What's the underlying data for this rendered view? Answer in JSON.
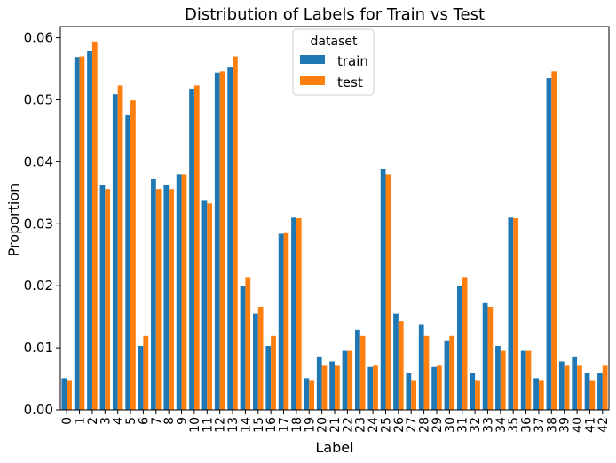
{
  "chart_data": {
    "type": "bar",
    "title": "Distribution of Labels for Train vs Test",
    "xlabel": "Label",
    "ylabel": "Proportion",
    "ylim": [
      0,
      0.0618
    ],
    "yticks": [
      "0.00",
      "0.01",
      "0.02",
      "0.03",
      "0.04",
      "0.05",
      "0.06"
    ],
    "ytick_values": [
      0,
      0.01,
      0.02,
      0.03,
      0.04,
      0.05,
      0.06
    ],
    "grid": false,
    "legend": {
      "title": "dataset",
      "placement": "top-center"
    },
    "categories": [
      "0",
      "1",
      "2",
      "3",
      "4",
      "5",
      "6",
      "7",
      "8",
      "9",
      "10",
      "11",
      "12",
      "13",
      "14",
      "15",
      "16",
      "17",
      "18",
      "19",
      "20",
      "21",
      "22",
      "23",
      "24",
      "25",
      "26",
      "27",
      "28",
      "29",
      "30",
      "31",
      "32",
      "33",
      "34",
      "35",
      "36",
      "37",
      "38",
      "39",
      "40",
      "41",
      "42"
    ],
    "series": [
      {
        "name": "train",
        "color": "#1f77b4",
        "values": [
          0.0051,
          0.0569,
          0.0578,
          0.0362,
          0.0509,
          0.0475,
          0.0103,
          0.0372,
          0.0362,
          0.038,
          0.0518,
          0.0337,
          0.0544,
          0.0552,
          0.0199,
          0.0155,
          0.0103,
          0.0284,
          0.031,
          0.0051,
          0.0086,
          0.0078,
          0.0095,
          0.0129,
          0.0069,
          0.0389,
          0.0155,
          0.006,
          0.0138,
          0.0069,
          0.0112,
          0.0199,
          0.006,
          0.0172,
          0.0103,
          0.031,
          0.0095,
          0.0051,
          0.0535,
          0.0078,
          0.0086,
          0.006,
          0.006
        ]
      },
      {
        "name": "test",
        "color": "#ff7f0e",
        "values": [
          0.0048,
          0.057,
          0.0594,
          0.0356,
          0.0523,
          0.0499,
          0.0119,
          0.0356,
          0.0356,
          0.038,
          0.0523,
          0.0333,
          0.0546,
          0.057,
          0.0214,
          0.0166,
          0.0119,
          0.0285,
          0.0309,
          0.0048,
          0.0071,
          0.0071,
          0.0095,
          0.0119,
          0.0071,
          0.038,
          0.0143,
          0.0048,
          0.0119,
          0.0071,
          0.0119,
          0.0214,
          0.0048,
          0.0166,
          0.0095,
          0.0309,
          0.0095,
          0.0048,
          0.0546,
          0.0071,
          0.0071,
          0.0048,
          0.0071
        ]
      }
    ]
  }
}
